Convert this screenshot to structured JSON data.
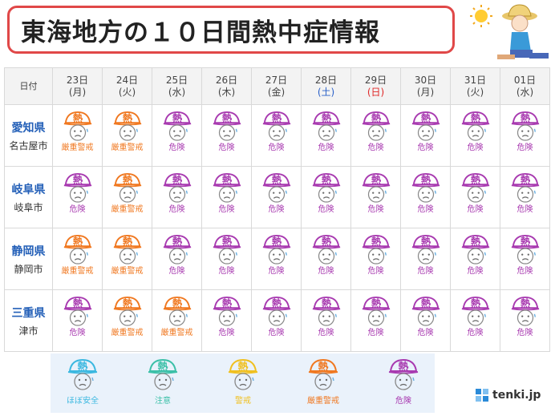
{
  "title": "東海地方の１０日間熱中症情報",
  "header": {
    "corner_label": "日付"
  },
  "days": [
    {
      "date": "23日",
      "weekday": "(月)",
      "type": "weekday"
    },
    {
      "date": "24日",
      "weekday": "(火)",
      "type": "weekday"
    },
    {
      "date": "25日",
      "weekday": "(水)",
      "type": "weekday"
    },
    {
      "date": "26日",
      "weekday": "(木)",
      "type": "weekday"
    },
    {
      "date": "27日",
      "weekday": "(金)",
      "type": "weekday"
    },
    {
      "date": "28日",
      "weekday": "(土)",
      "type": "sat"
    },
    {
      "date": "29日",
      "weekday": "(日)",
      "type": "sun"
    },
    {
      "date": "30日",
      "weekday": "(月)",
      "type": "weekday"
    },
    {
      "date": "31日",
      "weekday": "(火)",
      "type": "weekday"
    },
    {
      "date": "01日",
      "weekday": "(水)",
      "type": "weekday"
    }
  ],
  "levels": {
    "safe": {
      "label": "ほぼ安全",
      "color": "#3bb8e0"
    },
    "caution": {
      "label": "注意",
      "color": "#3cc0a8"
    },
    "warning": {
      "label": "警戒",
      "color": "#f0c020"
    },
    "severe": {
      "label": "厳重警戒",
      "color": "#f07820"
    },
    "danger": {
      "label": "危険",
      "color": "#a83ab0"
    }
  },
  "rows": [
    {
      "pref": "愛知県",
      "city": "名古屋市",
      "levels": [
        "severe",
        "severe",
        "danger",
        "danger",
        "danger",
        "danger",
        "danger",
        "danger",
        "danger",
        "danger"
      ]
    },
    {
      "pref": "岐阜県",
      "city": "岐阜市",
      "levels": [
        "danger",
        "severe",
        "danger",
        "danger",
        "danger",
        "danger",
        "danger",
        "danger",
        "danger",
        "danger"
      ]
    },
    {
      "pref": "静岡県",
      "city": "静岡市",
      "levels": [
        "severe",
        "severe",
        "danger",
        "danger",
        "danger",
        "danger",
        "danger",
        "danger",
        "danger",
        "danger"
      ]
    },
    {
      "pref": "三重県",
      "city": "津市",
      "levels": [
        "danger",
        "severe",
        "severe",
        "danger",
        "danger",
        "danger",
        "danger",
        "danger",
        "danger",
        "danger"
      ]
    }
  ],
  "legend": [
    "safe",
    "caution",
    "warning",
    "severe",
    "danger"
  ],
  "brand": "tenki.jp"
}
